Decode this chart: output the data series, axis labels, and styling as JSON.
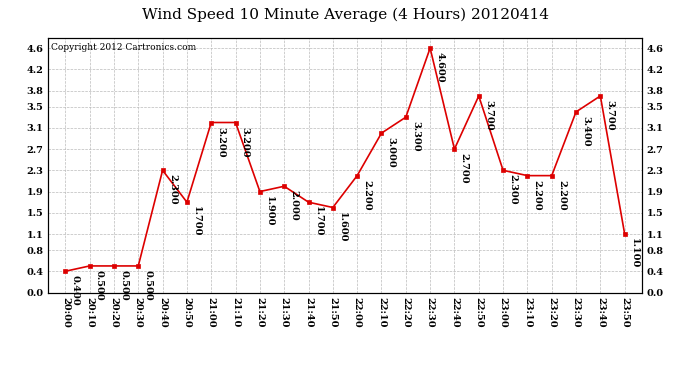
{
  "title": "Wind Speed 10 Minute Average (4 Hours) 20120414",
  "copyright": "Copyright 2012 Cartronics.com",
  "x_labels": [
    "20:00",
    "20:10",
    "20:20",
    "20:30",
    "20:40",
    "20:50",
    "21:00",
    "21:10",
    "21:20",
    "21:30",
    "21:40",
    "21:50",
    "22:00",
    "22:10",
    "22:20",
    "22:30",
    "22:40",
    "22:50",
    "23:00",
    "23:10",
    "23:20",
    "23:30",
    "23:40",
    "23:50"
  ],
  "y_values": [
    0.4,
    0.5,
    0.5,
    0.5,
    2.3,
    1.7,
    3.2,
    3.2,
    1.9,
    2.0,
    1.7,
    1.6,
    2.2,
    3.0,
    3.3,
    4.6,
    2.7,
    3.7,
    2.3,
    2.2,
    2.2,
    3.4,
    3.7,
    1.1
  ],
  "line_color": "#dd0000",
  "marker": "s",
  "marker_size": 3,
  "ylim": [
    0.0,
    4.8
  ],
  "yticks": [
    0.0,
    0.4,
    0.8,
    1.1,
    1.5,
    1.9,
    2.3,
    2.7,
    3.1,
    3.5,
    3.8,
    4.2,
    4.6
  ],
  "grid_color": "#bbbbbb",
  "bg_color": "#ffffff",
  "title_fontsize": 11,
  "tick_fontsize": 7,
  "annot_fontsize": 7,
  "copyright_fontsize": 6.5,
  "fig_width": 6.9,
  "fig_height": 3.75,
  "dpi": 100
}
